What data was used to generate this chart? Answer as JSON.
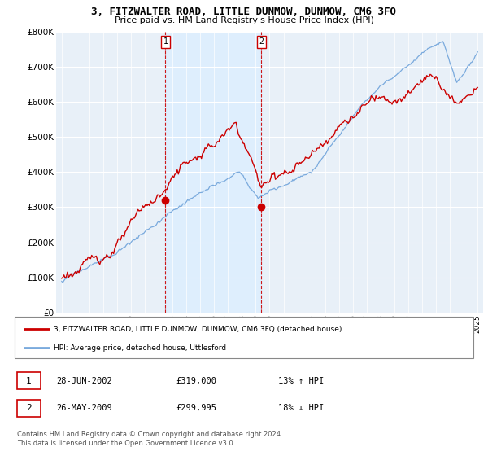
{
  "title": "3, FITZWALTER ROAD, LITTLE DUNMOW, DUNMOW, CM6 3FQ",
  "subtitle": "Price paid vs. HM Land Registry's House Price Index (HPI)",
  "legend_line1": "3, FITZWALTER ROAD, LITTLE DUNMOW, DUNMOW, CM6 3FQ (detached house)",
  "legend_line2": "HPI: Average price, detached house, Uttlesford",
  "footnote": "Contains HM Land Registry data © Crown copyright and database right 2024.\nThis data is licensed under the Open Government Licence v3.0.",
  "sale1_label": "1",
  "sale1_date": "28-JUN-2002",
  "sale1_price": "£319,000",
  "sale1_hpi": "13% ↑ HPI",
  "sale2_label": "2",
  "sale2_date": "26-MAY-2009",
  "sale2_price": "£299,995",
  "sale2_hpi": "18% ↓ HPI",
  "red_color": "#cc0000",
  "blue_color": "#7aaadd",
  "blue_fill": "#ddeeff",
  "chart_bg": "#e8f0f8",
  "background_color": "#ffffff",
  "ylim": [
    0,
    800000
  ],
  "yticks": [
    0,
    100000,
    200000,
    300000,
    400000,
    500000,
    600000,
    700000,
    800000
  ],
  "ytick_labels": [
    "£0",
    "£100K",
    "£200K",
    "£300K",
    "£400K",
    "£500K",
    "£600K",
    "£700K",
    "£800K"
  ],
  "sale1_year": 2002.49,
  "sale1_value": 319000,
  "sale2_year": 2009.4,
  "sale2_value": 299995
}
